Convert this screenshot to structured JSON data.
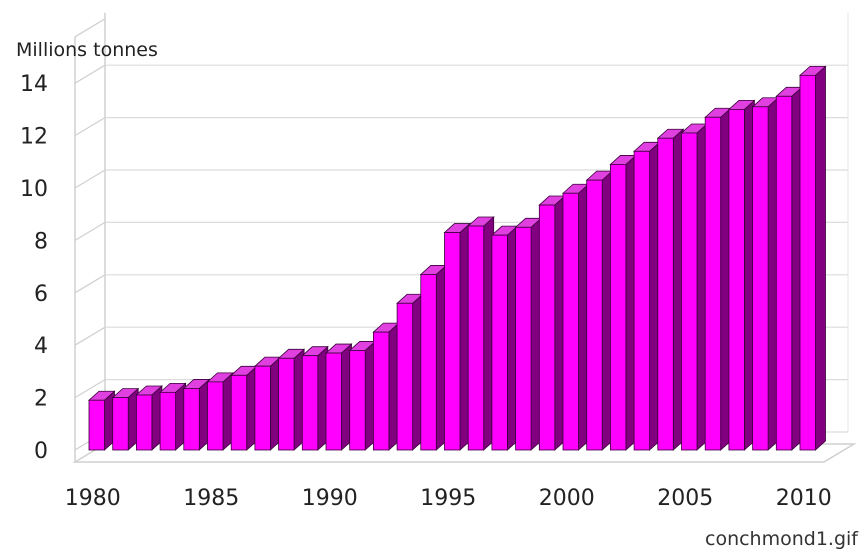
{
  "chart_data": {
    "type": "bar",
    "ylabel": "Millions tonnes",
    "ylim": [
      0,
      16
    ],
    "yticks": [
      0,
      2,
      4,
      6,
      8,
      10,
      12,
      14
    ],
    "xticks": [
      1980,
      1985,
      1990,
      1995,
      2000,
      2005,
      2010
    ],
    "grid": true,
    "bar_color": "#ff00ff",
    "bar_side_color": "#800080",
    "bar_top_color": "#e040e0",
    "x": [
      1980,
      1981,
      1982,
      1983,
      1984,
      1985,
      1986,
      1987,
      1988,
      1989,
      1990,
      1991,
      1992,
      1993,
      1994,
      1995,
      1996,
      1997,
      1998,
      1999,
      2000,
      2001,
      2002,
      2003,
      2004,
      2005,
      2006,
      2007,
      2008,
      2009,
      2010
    ],
    "values": [
      1.9,
      2.0,
      2.1,
      2.2,
      2.35,
      2.6,
      2.85,
      3.2,
      3.5,
      3.6,
      3.7,
      3.8,
      4.5,
      5.6,
      6.7,
      8.3,
      8.55,
      8.2,
      8.5,
      9.35,
      9.8,
      10.3,
      10.9,
      11.4,
      11.9,
      12.1,
      12.7,
      13.0,
      13.1,
      13.5,
      14.3
    ]
  },
  "footer": {
    "filename": "conchmond1.gif"
  }
}
